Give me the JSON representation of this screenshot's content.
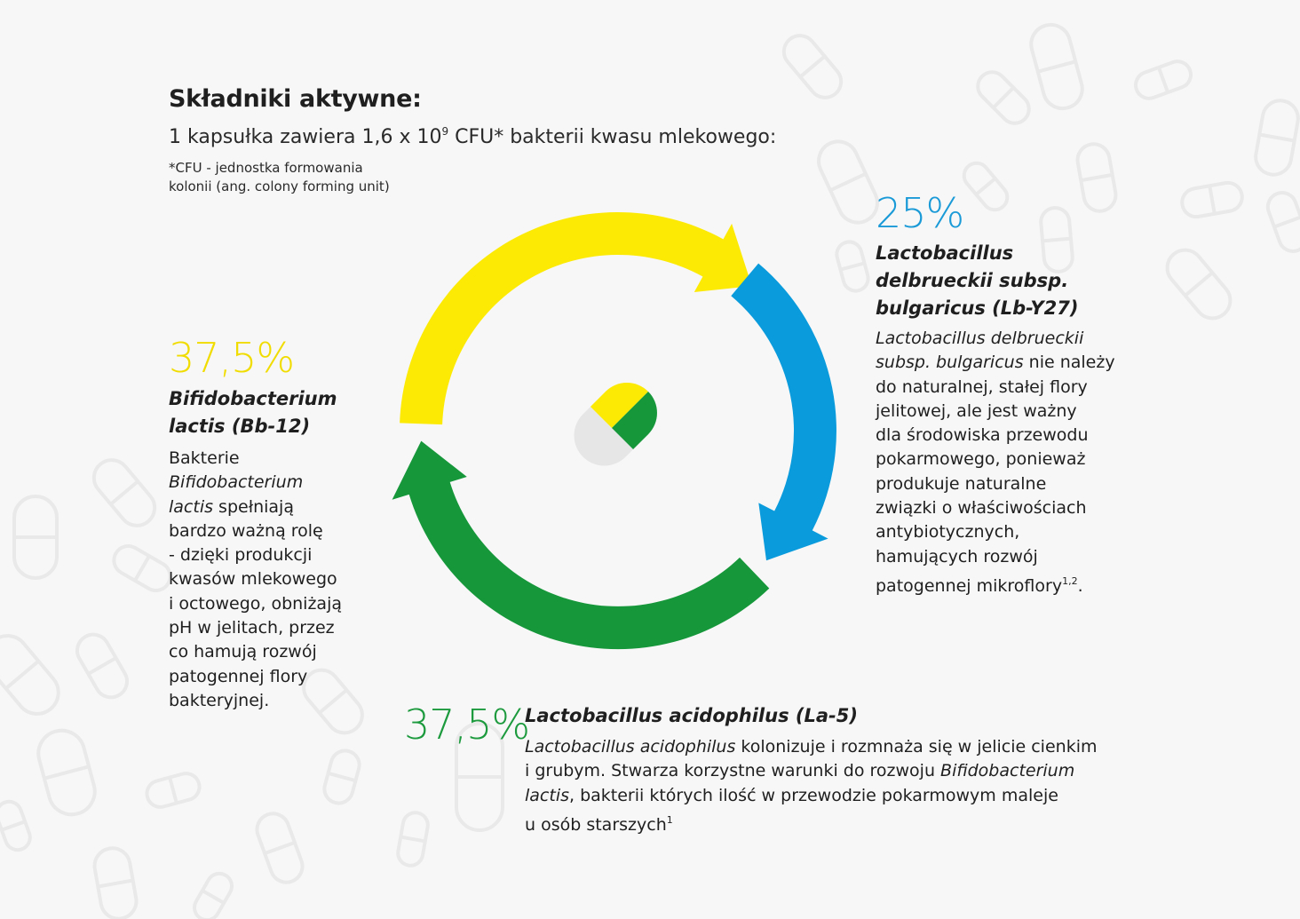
{
  "header": {
    "title": "Składniki aktywne:",
    "subtitle_before": "1 kapsułka zawiera 1,6 x 10",
    "subtitle_exp": "9",
    "subtitle_after": " CFU* bakterii kwasu mlekowego:",
    "footnote_line1": "*CFU - jednostka formowania",
    "footnote_line2": "kolonii (ang. colony forming unit)"
  },
  "colors": {
    "yellow": "#fcea05",
    "blue": "#0a9bdc",
    "green": "#15973a",
    "pill_grey": "#e6e6e6",
    "background": "#f7f7f7"
  },
  "ingredients": {
    "bifido": {
      "percent": "37,5%",
      "name_line1": "Bifidobacterium",
      "name_line2": "lactis (Bb-12)",
      "desc": {
        "l1": "Bakterie",
        "l2_i": "Bifidobacterium",
        "l3_i": "lactis",
        "l3_rest": " spełniają",
        "l4": "bardzo ważną rolę",
        "l5": "- dzięki produkcji",
        "l6": "kwasów mlekowego",
        "l7": "i octowego, obniżają",
        "l8": "pH w jelitach, przez",
        "l9": "co hamują rozwój",
        "l10": "patogennej flory",
        "l11": "bakteryjnej."
      }
    },
    "bulgaricus": {
      "percent": "25%",
      "name_line1": "Lactobacillus",
      "name_line2": "delbrueckii subsp.",
      "name_line3": "bulgaricus (Lb-Y27)",
      "desc": {
        "l1_i": "Lactobacillus delbrueckii",
        "l2_i": "subsp. bulgaricus",
        "l2_rest": " nie należy",
        "l3": "do naturalnej, stałej flory",
        "l4": "jelitowej, ale jest ważny",
        "l5": "dla środowiska przewodu",
        "l6": "pokarmowego, ponieważ",
        "l7": "produkuje naturalne",
        "l8": "związki o właściwościach",
        "l9": "antybiotycznych,",
        "l10": "hamujących rozwój",
        "l11": "patogennej mikroflory",
        "l11_sup": "1,2",
        "l11_end": "."
      }
    },
    "acidophilus": {
      "percent": "37,5%",
      "name": "Lactobacillus acidophilus (La-5)",
      "desc": {
        "l1_i": "Lactobacillus acidophilus",
        "l1_rest": " kolonizuje i rozmnaża się w jelicie cienkim",
        "l2_a": "i grubym. Stwarza korzystne warunki do rozwoju ",
        "l2_i": "Bifidobacterium",
        "l3_i": "lactis",
        "l3_rest": ", bakterii których ilość w przewodzie pokarmowym maleje",
        "l4": "u osób starszych",
        "l4_sup": "1"
      }
    }
  },
  "chart_data": {
    "type": "pie",
    "title": "Składniki aktywne",
    "categories": [
      "Lactobacillus delbrueckii subsp. bulgaricus (Lb-Y27)",
      "Lactobacillus acidophilus (La-5)",
      "Bifidobacterium lactis (Bb-12)"
    ],
    "values": [
      25,
      37.5,
      37.5
    ],
    "value_labels": [
      "25%",
      "37,5%",
      "37,5%"
    ],
    "colors": [
      "#0a9bdc",
      "#15973a",
      "#fcea05"
    ],
    "style": "circular arrows"
  }
}
